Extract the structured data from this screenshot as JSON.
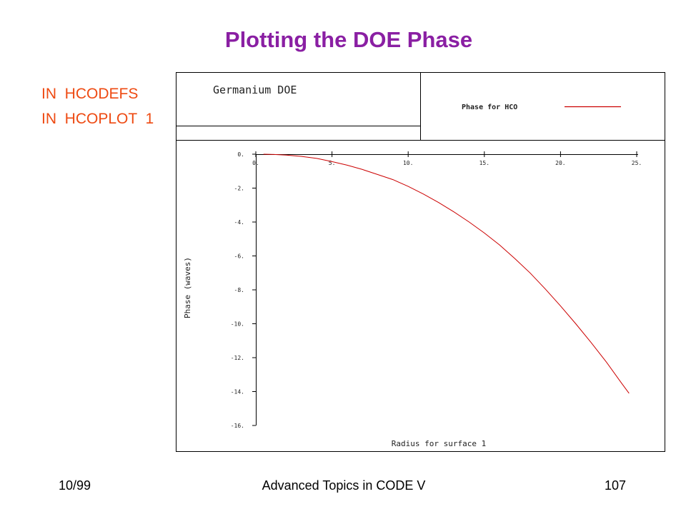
{
  "slide": {
    "title": "Plotting the DOE Phase",
    "commands": [
      "IN  HCODEFS",
      "IN  HCOPLOT  1"
    ],
    "footer_left": "10/99",
    "footer_center": "Advanced Topics in CODE V",
    "footer_right": "107"
  },
  "colors": {
    "title": "#8a1fa3",
    "commands": "#ee4a12",
    "curve": "#cc0000",
    "frame": "#000000"
  },
  "chart_data": {
    "type": "line",
    "title": "Germanium DOE",
    "xlabel": "Radius for surface 1",
    "ylabel": "Phase (waves)",
    "xlim": [
      0,
      25
    ],
    "ylim": [
      -16,
      0
    ],
    "x_ticks": [
      "0.",
      "5.",
      "10.",
      "15.",
      "20.",
      "25."
    ],
    "x_tick_values": [
      0,
      5,
      10,
      15,
      20,
      25
    ],
    "y_ticks": [
      "0.",
      "-2.",
      "-4.",
      "-6.",
      "-8.",
      "-10.",
      "-12.",
      "-14.",
      "-16."
    ],
    "y_tick_values": [
      0,
      -2,
      -4,
      -6,
      -8,
      -10,
      -12,
      -14,
      -16
    ],
    "grid": false,
    "legend_position": "top-right",
    "series": [
      {
        "name": "Phase for HCO",
        "x": [
          0.5,
          1,
          2,
          3,
          4,
          5,
          6,
          7,
          8,
          9,
          10,
          11,
          12,
          13,
          14,
          15,
          16,
          17,
          18,
          19,
          20,
          21,
          22,
          23,
          24,
          24.5
        ],
        "y": [
          0.0,
          -0.01,
          -0.05,
          -0.13,
          -0.25,
          -0.44,
          -0.65,
          -0.9,
          -1.2,
          -1.5,
          -1.9,
          -2.35,
          -2.85,
          -3.4,
          -4.0,
          -4.65,
          -5.35,
          -6.15,
          -7.0,
          -7.95,
          -8.95,
          -10.0,
          -11.1,
          -12.25,
          -13.5,
          -14.1
        ]
      }
    ]
  }
}
